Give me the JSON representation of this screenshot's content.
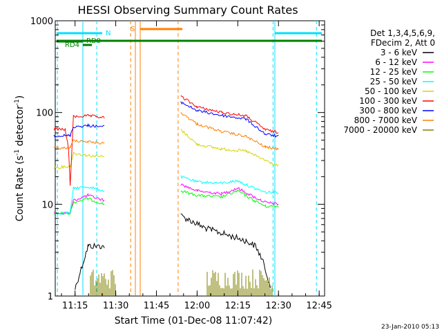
{
  "chart_data": {
    "type": "line",
    "title": "HESSI Observing Summary Count Rates",
    "xlabel": "Start Time (01-Dec-08 11:07:42)",
    "ylabel_main": "Count Rate (s",
    "ylabel_sup1": "-1",
    "ylabel_mid": " detector",
    "ylabel_sup2": "-1",
    "ylabel_end": ")",
    "yscale": "log",
    "ylim": [
      1,
      1000
    ],
    "xlim": [
      "11:07:42",
      "12:47:00"
    ],
    "x_ticks": [
      "11:15",
      "11:30",
      "11:45",
      "12:00",
      "12:15",
      "12:30",
      "12:45"
    ],
    "y_ticks": [
      "1",
      "10",
      "100",
      "1000"
    ],
    "timestamp": "23-Jan-2010 05:13",
    "legend": {
      "placement": "right",
      "header": [
        "Det 1,3,4,5,6,9,",
        "FDecim 2, Att 0"
      ]
    },
    "flag_labels": {
      "N": "N",
      "S": "S",
      "RD0": "RD0",
      "RD4": "RD4"
    },
    "flag_colors": {
      "N": "#00e0ff",
      "S": "#ff7f00",
      "RD": "#008000"
    },
    "gaps": [
      {
        "name": "saa-start",
        "x": "11:35:30",
        "color": "#ff7f00"
      },
      {
        "name": "saa-end",
        "x": "11:53:00",
        "color": "#ff7f00"
      },
      {
        "name": "night-1-start",
        "x": "11:08:30",
        "color": "#00e0ff"
      },
      {
        "name": "night-1-end",
        "x": "11:23:00",
        "color": "#00e0ff"
      },
      {
        "name": "night-2-start",
        "x": "12:28:00",
        "color": "#00e0ff"
      },
      {
        "name": "night-2-end",
        "x": "12:44:00",
        "color": "#00e0ff"
      }
    ],
    "series": [
      {
        "name": "3 - 6 keV",
        "color": "#000000",
        "pre": [
          [
            11.25,
            1.2
          ],
          [
            11.33,
            3.5
          ],
          [
            11.43,
            3.5
          ]
        ],
        "post": [
          [
            11.9,
            7.5
          ],
          [
            12.05,
            5.5
          ],
          [
            12.3,
            4.0
          ],
          [
            12.36,
            3.5
          ],
          [
            12.4,
            2.5
          ],
          [
            12.45,
            1.3
          ]
        ]
      },
      {
        "name": "6 - 12 keV",
        "color": "#ff00ff",
        "pre": [
          [
            11.12,
            8.0
          ],
          [
            11.22,
            8.0
          ],
          [
            11.24,
            11.0
          ],
          [
            11.33,
            12.5
          ],
          [
            11.43,
            11.0
          ]
        ],
        "post": [
          [
            11.9,
            16.5
          ],
          [
            12.0,
            14.0
          ],
          [
            12.15,
            13.0
          ],
          [
            12.25,
            15.0
          ],
          [
            12.35,
            12.0
          ],
          [
            12.42,
            10.5
          ],
          [
            12.5,
            10.0
          ]
        ]
      },
      {
        "name": "12 - 25 keV",
        "color": "#00ff00",
        "pre": [
          [
            11.12,
            8.0
          ],
          [
            11.22,
            8.0
          ],
          [
            11.24,
            10.5
          ],
          [
            11.33,
            11.5
          ],
          [
            11.43,
            10.0
          ]
        ],
        "post": [
          [
            11.9,
            14.0
          ],
          [
            12.0,
            12.5
          ],
          [
            12.15,
            12.0
          ],
          [
            12.25,
            14.0
          ],
          [
            12.35,
            11.0
          ],
          [
            12.42,
            9.5
          ],
          [
            12.5,
            9.5
          ]
        ]
      },
      {
        "name": "25 - 50 keV",
        "color": "#00ffff",
        "pre": [
          [
            11.12,
            8.0
          ],
          [
            11.22,
            8.0
          ],
          [
            11.24,
            15.0
          ],
          [
            11.33,
            15.5
          ],
          [
            11.43,
            14.0
          ]
        ],
        "post": [
          [
            11.9,
            20.0
          ],
          [
            12.0,
            17.5
          ],
          [
            12.15,
            17.0
          ],
          [
            12.25,
            18.0
          ],
          [
            12.35,
            15.0
          ],
          [
            12.42,
            13.5
          ],
          [
            12.5,
            13.5
          ]
        ]
      },
      {
        "name": "50 - 100 keV",
        "color": "#d4d400",
        "pre": [
          [
            11.12,
            25.0
          ],
          [
            11.22,
            26.0
          ],
          [
            11.24,
            36.0
          ],
          [
            11.33,
            34.0
          ],
          [
            11.43,
            33.0
          ]
        ],
        "post": [
          [
            11.9,
            65.0
          ],
          [
            12.0,
            45.0
          ],
          [
            12.15,
            40.0
          ],
          [
            12.3,
            38.0
          ],
          [
            12.42,
            30.0
          ],
          [
            12.5,
            26.0
          ]
        ]
      },
      {
        "name": "100 - 300 keV",
        "color": "#ff0000",
        "pre": [
          [
            11.12,
            66.0
          ],
          [
            11.19,
            65.0
          ],
          [
            11.21,
            40.0
          ],
          [
            11.22,
            16.0
          ],
          [
            11.24,
            90.0
          ],
          [
            11.33,
            92.0
          ],
          [
            11.43,
            88.0
          ]
        ],
        "post": [
          [
            11.9,
            150.0
          ],
          [
            12.0,
            115.0
          ],
          [
            12.15,
            100.0
          ],
          [
            12.3,
            92.0
          ],
          [
            12.42,
            65.0
          ],
          [
            12.5,
            60.0
          ]
        ]
      },
      {
        "name": "300 - 800 keV",
        "color": "#0000ff",
        "pre": [
          [
            11.12,
            56.0
          ],
          [
            11.22,
            56.0
          ],
          [
            11.24,
            70.0
          ],
          [
            11.33,
            72.0
          ],
          [
            11.43,
            70.0
          ]
        ],
        "post": [
          [
            11.9,
            130.0
          ],
          [
            12.0,
            105.0
          ],
          [
            12.15,
            93.0
          ],
          [
            12.3,
            85.0
          ],
          [
            12.42,
            58.0
          ],
          [
            12.5,
            55.0
          ]
        ]
      },
      {
        "name": "800 - 7000 keV",
        "color": "#ff7f00",
        "pre": [
          [
            11.12,
            41.0
          ],
          [
            11.22,
            41.0
          ],
          [
            11.24,
            50.0
          ],
          [
            11.33,
            48.0
          ],
          [
            11.43,
            46.0
          ]
        ],
        "post": [
          [
            11.9,
            100.0
          ],
          [
            12.0,
            75.0
          ],
          [
            12.15,
            62.0
          ],
          [
            12.3,
            55.0
          ],
          [
            12.42,
            42.0
          ],
          [
            12.5,
            40.0
          ]
        ]
      },
      {
        "name": "7000 - 20000 keV",
        "color": "#808000",
        "pre": [
          [
            11.22,
            1.0
          ],
          [
            11.3,
            1.0
          ],
          [
            11.43,
            1.0
          ]
        ],
        "post": [
          [
            12.0,
            1.0
          ],
          [
            12.4,
            1.0
          ]
        ]
      }
    ]
  }
}
